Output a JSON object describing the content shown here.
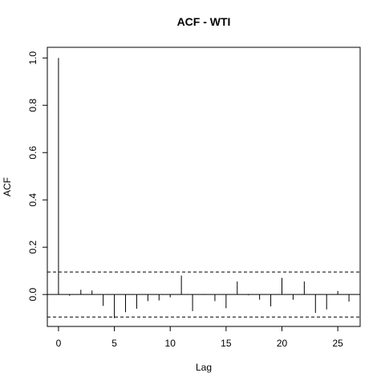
{
  "chart_data": {
    "type": "bar",
    "title": "ACF - WTI",
    "xlabel": "Lag",
    "ylabel": "ACF",
    "xlim": [
      -1,
      27
    ],
    "ylim": [
      -0.135,
      1.045
    ],
    "x_ticks": [
      0,
      5,
      10,
      15,
      20,
      25
    ],
    "y_ticks": [
      0.0,
      0.2,
      0.4,
      0.6,
      0.8,
      1.0
    ],
    "y_tick_labels": [
      "0.0",
      "0.2",
      "0.4",
      "0.6",
      "0.8",
      "1.0"
    ],
    "confidence_bounds": [
      0.095,
      -0.095
    ],
    "grid": false,
    "series": [
      {
        "lags": [
          0,
          1,
          2,
          3,
          4,
          5,
          6,
          7,
          8,
          9,
          10,
          11,
          12,
          13,
          14,
          15,
          16,
          17,
          18,
          19,
          20,
          21,
          22,
          23,
          24,
          25,
          26
        ],
        "values": [
          1.0,
          -0.005,
          0.02,
          0.017,
          -0.048,
          -0.1,
          -0.075,
          -0.06,
          -0.028,
          -0.025,
          -0.012,
          0.08,
          -0.07,
          0.002,
          -0.028,
          -0.058,
          0.055,
          -0.003,
          -0.022,
          -0.05,
          0.07,
          -0.022,
          0.055,
          -0.078,
          -0.063,
          0.015,
          -0.03
        ]
      }
    ],
    "colors": {
      "bars": "#000000",
      "bounds": "#000000",
      "frame": "#000000",
      "background": "#ffffff"
    }
  }
}
